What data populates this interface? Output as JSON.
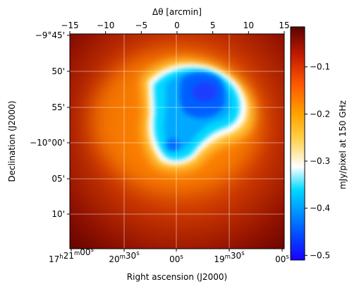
{
  "chart_data": {
    "type": "heatmap",
    "title": "",
    "top_axis": {
      "label": "Δθ [arcmin]",
      "range": [
        -15,
        15
      ],
      "ticks": [
        -15,
        -10,
        -5,
        0,
        5,
        10,
        15
      ],
      "tick_labels": [
        "−15",
        "−10",
        "−5",
        "0",
        "5",
        "10",
        "15"
      ]
    },
    "xaxis": {
      "label": "Right ascension (J2000)",
      "tick_labels": [
        "17h21m00s",
        "20m30s",
        "00s",
        "19m30s",
        "00s"
      ],
      "tick_labels_display": [
        {
          "main": "17",
          "sup1": "h",
          "mid": "21",
          "sup2": "m",
          "end": "00",
          "sup3": "s"
        },
        {
          "main": "20",
          "sup1": "m",
          "mid": "30",
          "sup2": "s",
          "end": "",
          "sup3": ""
        },
        {
          "main": "00",
          "sup1": "s",
          "mid": "",
          "sup2": "",
          "end": "",
          "sup3": ""
        },
        {
          "main": "19",
          "sup1": "m",
          "mid": "30",
          "sup2": "s",
          "end": "",
          "sup3": ""
        },
        {
          "main": "00",
          "sup1": "s",
          "mid": "",
          "sup2": "",
          "end": "",
          "sup3": ""
        }
      ]
    },
    "yaxis": {
      "label": "Declination (J2000)",
      "tick_labels": [
        "−9°45'",
        "50'",
        "55'",
        "−10°00'",
        "05'",
        "10'"
      ]
    },
    "colorbar": {
      "label": "mJy/pixel at 150 GHz",
      "range": [
        -0.51,
        -0.015
      ],
      "ticks": [
        -0.1,
        -0.2,
        -0.3,
        -0.4,
        -0.5
      ],
      "tick_labels": [
        "−0.1",
        "−0.2",
        "−0.3",
        "−0.4",
        "−0.5"
      ],
      "colormap": "cmr.fusion-like (blue → cyan → white → yellow → orange → red → dark red)"
    },
    "grid": true,
    "description": "Sunyaev-Zel'dovich decrement map; deep negative (blue) region near center-right, surrounded by orange/red background."
  }
}
